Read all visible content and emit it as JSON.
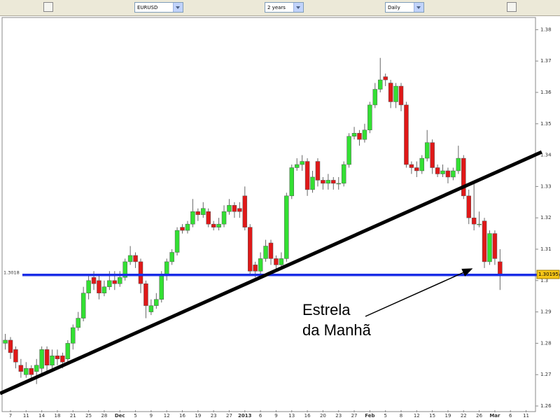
{
  "toolbar": {
    "symbol": "EURUSD",
    "range": "2 years",
    "interval": "Daily"
  },
  "chart_data": {
    "type": "candlestick",
    "categories": [
      null,
      "7",
      null,
      null,
      "11",
      null,
      null,
      "14",
      null,
      null,
      "18",
      null,
      null,
      "21",
      null,
      null,
      "25",
      null,
      null,
      "28",
      null,
      null,
      "Dec",
      null,
      null,
      "5",
      null,
      null,
      "9",
      null,
      null,
      "12",
      null,
      null,
      "16",
      null,
      null,
      "19",
      null,
      null,
      "23",
      null,
      null,
      "27",
      null,
      null,
      "2013",
      null,
      null,
      "6",
      null,
      null,
      "9",
      null,
      null,
      "13",
      null,
      null,
      "16",
      null,
      null,
      "20",
      null,
      null,
      "23",
      null,
      null,
      "27",
      null,
      null,
      "Feb",
      null,
      null,
      "5",
      null,
      null,
      "8",
      null,
      null,
      "12",
      null,
      null,
      "15",
      null,
      null,
      "19",
      null,
      null,
      "22",
      null,
      null,
      "26",
      null,
      null,
      "Mar",
      null,
      null,
      "6",
      null,
      null,
      "11"
    ],
    "open": [
      1.28,
      1.281,
      1.278,
      1.273,
      1.27,
      1.272,
      1.271,
      1.272,
      1.278,
      1.273,
      1.276,
      1.276,
      1.275,
      1.28,
      1.285,
      1.288,
      1.296,
      1.301,
      1.3,
      1.296,
      1.298,
      1.3,
      1.299,
      1.301,
      1.306,
      1.308,
      1.306,
      1.299,
      1.29,
      1.292,
      1.294,
      1.302,
      1.306,
      1.309,
      1.317,
      1.316,
      1.318,
      1.322,
      1.321,
      1.322,
      1.318,
      1.317,
      1.318,
      1.322,
      1.324,
      1.323,
      1.327,
      1.317,
      1.305,
      1.303,
      1.307,
      1.312,
      1.307,
      1.305,
      1.307,
      1.327,
      1.336,
      1.337,
      1.338,
      1.329,
      1.338,
      1.332,
      1.331,
      1.332,
      1.331,
      1.331,
      1.337,
      1.346,
      1.347,
      1.345,
      1.348,
      1.356,
      1.361,
      1.365,
      1.363,
      1.357,
      1.362,
      1.356,
      1.337,
      1.336,
      1.335,
      1.339,
      1.344,
      1.336,
      1.334,
      1.335,
      1.333,
      1.335,
      1.339,
      1.327,
      1.32,
      1.318,
      1.319,
      1.306,
      1.315,
      1.306,
      null,
      null,
      null,
      null,
      null
    ],
    "high": [
      1.283,
      1.282,
      1.279,
      1.275,
      1.274,
      1.273,
      1.275,
      1.279,
      1.279,
      1.278,
      1.278,
      1.277,
      1.281,
      1.286,
      1.29,
      1.298,
      1.302,
      1.303,
      1.302,
      1.3,
      1.303,
      1.303,
      1.303,
      1.307,
      1.311,
      1.309,
      1.307,
      1.3,
      1.294,
      1.296,
      1.303,
      1.307,
      1.31,
      1.317,
      1.318,
      1.319,
      1.326,
      1.323,
      1.325,
      1.323,
      1.319,
      1.32,
      1.324,
      1.326,
      1.325,
      1.325,
      1.33,
      1.318,
      1.306,
      1.309,
      1.313,
      1.313,
      1.308,
      1.309,
      1.328,
      1.337,
      1.339,
      1.34,
      1.339,
      1.335,
      1.339,
      1.333,
      1.334,
      1.333,
      1.333,
      1.338,
      1.347,
      1.349,
      1.348,
      1.35,
      1.357,
      1.363,
      1.371,
      1.366,
      1.364,
      1.363,
      1.363,
      1.357,
      1.338,
      1.338,
      1.34,
      1.348,
      1.345,
      1.337,
      1.337,
      1.336,
      1.336,
      1.343,
      1.34,
      1.329,
      1.331,
      1.322,
      1.32,
      1.316,
      1.316,
      1.31,
      null,
      null,
      null,
      null,
      null
    ],
    "low": [
      1.278,
      1.275,
      1.272,
      1.269,
      1.269,
      1.268,
      1.267,
      1.27,
      1.271,
      1.272,
      1.273,
      1.272,
      1.274,
      1.278,
      1.284,
      1.287,
      1.294,
      1.297,
      1.294,
      1.295,
      1.297,
      1.297,
      1.298,
      1.3,
      1.305,
      1.304,
      1.296,
      1.288,
      1.289,
      1.291,
      1.293,
      1.3,
      1.305,
      1.308,
      1.315,
      1.315,
      1.317,
      1.319,
      1.32,
      1.317,
      1.316,
      1.316,
      1.317,
      1.321,
      1.32,
      1.32,
      1.316,
      1.302,
      1.301,
      1.302,
      1.306,
      1.305,
      1.303,
      1.304,
      1.306,
      1.326,
      1.335,
      1.335,
      1.327,
      1.328,
      1.33,
      1.329,
      1.329,
      1.329,
      1.329,
      1.33,
      1.336,
      1.345,
      1.343,
      1.344,
      1.347,
      1.355,
      1.36,
      1.362,
      1.355,
      1.355,
      1.354,
      1.336,
      1.334,
      1.333,
      1.334,
      1.338,
      1.334,
      1.333,
      1.333,
      1.331,
      1.332,
      1.334,
      1.326,
      1.318,
      1.316,
      1.317,
      1.304,
      1.305,
      1.305,
      1.297,
      null,
      null,
      null,
      null,
      null
    ],
    "close": [
      1.281,
      1.277,
      1.274,
      1.271,
      1.272,
      1.27,
      1.273,
      1.278,
      1.273,
      1.276,
      1.275,
      1.274,
      1.28,
      1.285,
      1.288,
      1.296,
      1.3,
      1.299,
      1.296,
      1.298,
      1.3,
      1.299,
      1.301,
      1.306,
      1.308,
      1.306,
      1.299,
      1.292,
      1.292,
      1.294,
      1.302,
      1.306,
      1.309,
      1.316,
      1.316,
      1.318,
      1.322,
      1.321,
      1.323,
      1.318,
      1.317,
      1.318,
      1.322,
      1.324,
      1.322,
      1.322,
      1.317,
      1.303,
      1.303,
      1.307,
      1.311,
      1.307,
      1.305,
      1.307,
      1.327,
      1.336,
      1.337,
      1.338,
      1.329,
      1.333,
      1.332,
      1.331,
      1.332,
      1.331,
      1.331,
      1.337,
      1.346,
      1.347,
      1.345,
      1.348,
      1.356,
      1.361,
      1.364,
      1.364,
      1.357,
      1.362,
      1.356,
      1.337,
      1.336,
      1.335,
      1.339,
      1.344,
      1.336,
      1.334,
      1.335,
      1.333,
      1.335,
      1.339,
      1.327,
      1.32,
      1.318,
      1.318,
      1.306,
      1.315,
      1.307,
      1.302,
      null,
      null,
      null,
      null,
      null
    ],
    "up_color": "#33e033",
    "down_color": "#e01818",
    "ylim": [
      1.26,
      1.38
    ],
    "yticks": [
      1.26,
      1.27,
      1.28,
      1.29,
      1.3,
      1.31,
      1.32,
      1.33,
      1.34,
      1.35,
      1.36,
      1.37,
      1.38
    ],
    "hline": {
      "value": 1.3018,
      "label": "1.3018",
      "color": "#1a2ee6"
    },
    "last_price": {
      "value": 1.30195,
      "label": "1.30195"
    },
    "trendline": {
      "x": [
        -1,
        103
      ],
      "y": [
        1.264,
        1.341
      ],
      "color": "#000000"
    },
    "annotation": {
      "lines": [
        "Estrela",
        "da Manhã"
      ]
    },
    "grid": false
  }
}
